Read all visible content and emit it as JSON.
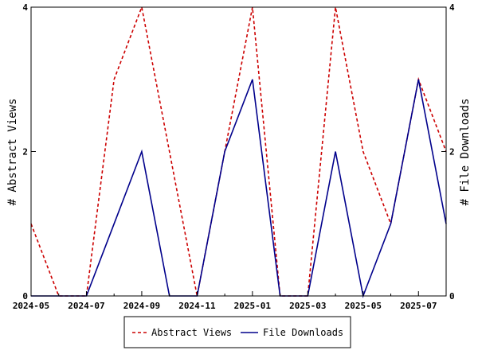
{
  "chart_data": {
    "type": "line",
    "x": [
      "2024-05",
      "2024-06",
      "2024-07",
      "2024-08",
      "2024-09",
      "2024-10",
      "2024-11",
      "2024-12",
      "2025-01",
      "2025-02",
      "2025-03",
      "2025-04",
      "2025-05",
      "2025-06",
      "2025-07",
      "2025-08"
    ],
    "x_tick_labels": [
      "2024-05",
      "2024-07",
      "2024-09",
      "2024-11",
      "2025-01",
      "2025-03",
      "2025-05",
      "2025-07"
    ],
    "series": [
      {
        "name": "Abstract Views",
        "axis": "left",
        "color": "#cc0000",
        "dash": "dashed",
        "values": [
          1,
          0,
          0,
          3,
          4,
          2,
          0,
          2,
          4,
          0,
          0,
          4,
          2,
          1,
          3,
          2
        ]
      },
      {
        "name": "File Downloads",
        "axis": "right",
        "color": "#00008b",
        "dash": "solid",
        "values": [
          0,
          0,
          0,
          1,
          2,
          0,
          0,
          2,
          3,
          0,
          0,
          2,
          0,
          1,
          3,
          1
        ]
      }
    ],
    "ylabel_left": "# Abstract Views",
    "ylabel_right": "# File Downloads",
    "ylim": [
      0,
      4
    ],
    "y_ticks": [
      0,
      2,
      4
    ],
    "grid": false,
    "legend_position": "bottom"
  }
}
